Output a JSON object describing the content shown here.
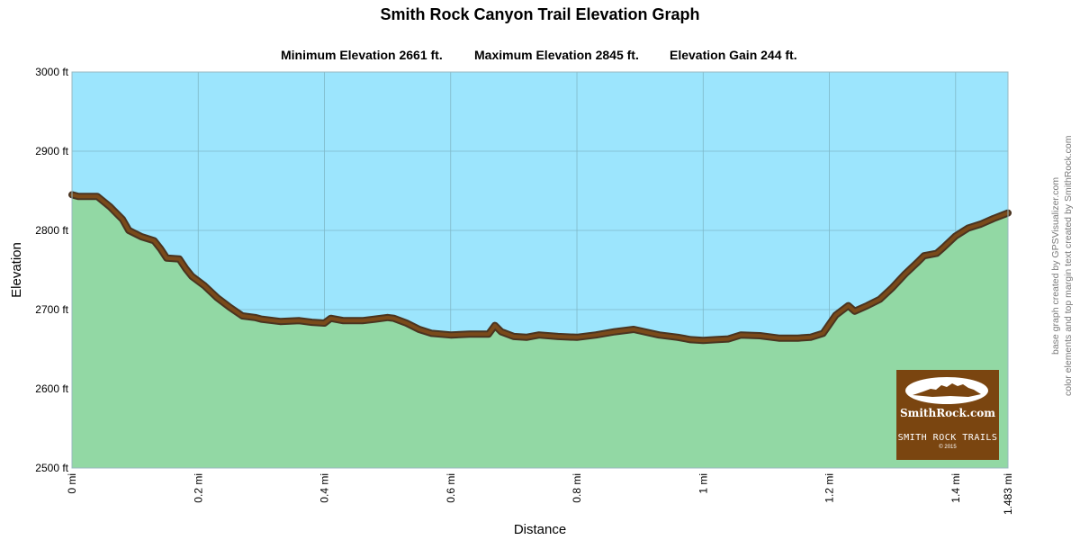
{
  "header": {
    "title": "Smith Rock Canyon Trail Elevation Graph",
    "min_elevation": "Minimum Elevation  2661 ft.",
    "max_elevation": "Maximum Elevation 2845 ft.",
    "elevation_gain": "Elevation Gain 244 ft."
  },
  "credits": {
    "line1": "base graph created by GPSVisualizer.com",
    "line2": "color elements and top margin text created by SmithRock.com"
  },
  "logo": {
    "brand": "SmithRock.com",
    "subtitle": "SMITH ROCK TRAILS",
    "copyright": "© 2015"
  },
  "colors": {
    "sky": "#9ce5fd",
    "ground": "#92d8a4",
    "trail": "#7a4a1a",
    "trail_outline": "#4a3420",
    "grid": "#7fb8c8",
    "logo_bg": "#7a4510"
  },
  "chart_data": {
    "type": "area",
    "xlabel": "Distance",
    "ylabel": "Elevation",
    "xlim": [
      0,
      1.483
    ],
    "ylim": [
      2500,
      3000
    ],
    "x_ticks": [
      0,
      0.2,
      0.4,
      0.6,
      0.8,
      1.0,
      1.2,
      1.4,
      1.483
    ],
    "x_tick_labels": [
      "0 mi",
      "0.2 mi",
      "0.4 mi",
      "0.6 mi",
      "0.8 mi",
      "1 mi",
      "1.2 mi",
      "1.4 mi",
      "1.483 mi"
    ],
    "y_ticks": [
      2500,
      2600,
      2700,
      2800,
      2900,
      3000
    ],
    "y_tick_labels": [
      "2500 ft",
      "2600 ft",
      "2700 ft",
      "2800 ft",
      "2900 ft",
      "3000 ft"
    ],
    "grid": true,
    "series": [
      {
        "x": [
          0,
          0.01,
          0.04,
          0.06,
          0.08,
          0.09,
          0.11,
          0.13,
          0.14,
          0.15,
          0.17,
          0.18,
          0.19,
          0.21,
          0.23,
          0.25,
          0.27,
          0.29,
          0.3,
          0.33,
          0.36,
          0.38,
          0.4,
          0.41,
          0.43,
          0.46,
          0.48,
          0.5,
          0.51,
          0.53,
          0.55,
          0.57,
          0.6,
          0.63,
          0.66,
          0.67,
          0.68,
          0.7,
          0.72,
          0.74,
          0.77,
          0.8,
          0.83,
          0.86,
          0.89,
          0.93,
          0.96,
          0.98,
          1.0,
          1.02,
          1.04,
          1.06,
          1.09,
          1.12,
          1.15,
          1.17,
          1.19,
          1.21,
          1.23,
          1.24,
          1.26,
          1.28,
          1.3,
          1.32,
          1.34,
          1.35,
          1.37,
          1.38,
          1.4,
          1.42,
          1.44,
          1.46,
          1.483
        ],
        "y": [
          2845,
          2843,
          2843,
          2830,
          2814,
          2800,
          2792,
          2787,
          2777,
          2765,
          2764,
          2752,
          2742,
          2730,
          2715,
          2703,
          2692,
          2690,
          2688,
          2685,
          2686,
          2684,
          2683,
          2689,
          2686,
          2686,
          2688,
          2690,
          2689,
          2683,
          2675,
          2670,
          2668,
          2669,
          2669,
          2680,
          2672,
          2666,
          2665,
          2668,
          2666,
          2665,
          2668,
          2672,
          2675,
          2668,
          2665,
          2662,
          2661,
          2662,
          2663,
          2668,
          2667,
          2664,
          2664,
          2665,
          2670,
          2693,
          2705,
          2698,
          2705,
          2713,
          2728,
          2745,
          2760,
          2768,
          2771,
          2778,
          2793,
          2803,
          2808,
          2815,
          2822
        ]
      }
    ]
  }
}
